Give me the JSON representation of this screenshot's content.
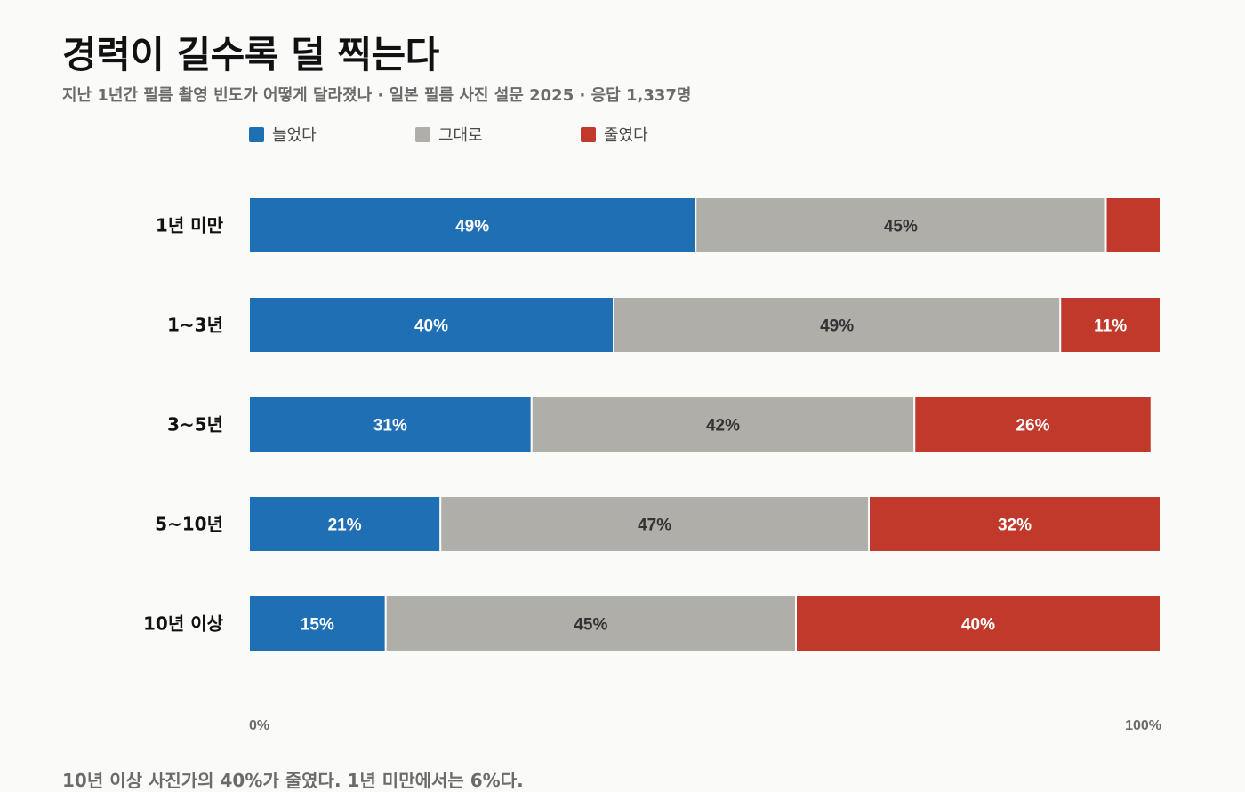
{
  "title": "경력이 길수록 덜 찍는다",
  "subtitle": "지난 1년간 필름 촬영 빈도가 어떻게 달라졌나 · 일본 필름 사진 설문 2025 · 응답 1,337명",
  "footer": "10년 이상 사진가의 40%가 줄였다. 1년 미만에서는 6%다.",
  "colors": {
    "increased": "#1f6fb5",
    "same": "#b0aea8",
    "decreased": "#c0392b",
    "label_light": "#ffffff",
    "label_dark": "#333333"
  },
  "chart_data": {
    "type": "bar",
    "orientation": "horizontal",
    "stacked": true,
    "categories": [
      "1년 미만",
      "1~3년",
      "3~5년",
      "5~10년",
      "10년 이상"
    ],
    "series": [
      {
        "name": "늘었다",
        "values": [
          49,
          40,
          31,
          21,
          15
        ],
        "data_labels": [
          "49%",
          "40%",
          "31%",
          "21%",
          "15%"
        ]
      },
      {
        "name": "그대로",
        "values": [
          45,
          49,
          42,
          47,
          45
        ],
        "data_labels": [
          "45%",
          "49%",
          "42%",
          "47%",
          "45%"
        ]
      },
      {
        "name": "줄였다",
        "values": [
          6,
          11,
          26,
          32,
          40
        ],
        "data_labels": [
          "",
          "11%",
          "26%",
          "32%",
          "40%"
        ]
      }
    ],
    "xlim": [
      0,
      100
    ],
    "xtick_labels": [
      "0%",
      "100%"
    ],
    "legend_position": "top-left",
    "grid": false
  }
}
